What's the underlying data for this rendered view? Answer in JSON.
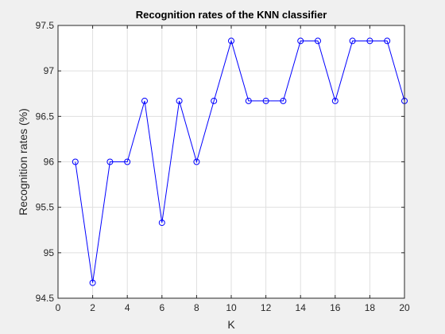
{
  "chart_data": {
    "type": "line",
    "title": "Recognition rates of the KNN classifier",
    "xlabel": "K",
    "ylabel": "Recognition rates (%)",
    "xlim": [
      0,
      20
    ],
    "ylim": [
      94.5,
      97.5
    ],
    "xticks": [
      0,
      2,
      4,
      6,
      8,
      10,
      12,
      14,
      16,
      18,
      20
    ],
    "yticks": [
      94.5,
      95,
      95.5,
      96,
      96.5,
      97,
      97.5
    ],
    "grid": true,
    "series": [
      {
        "color": "#0000ff",
        "marker": "circle",
        "x": [
          1,
          2,
          3,
          4,
          5,
          6,
          7,
          8,
          9,
          10,
          11,
          12,
          13,
          14,
          15,
          16,
          17,
          18,
          19,
          20
        ],
        "y": [
          96.0,
          94.67,
          96.0,
          96.0,
          96.67,
          95.33,
          96.67,
          96.0,
          96.67,
          97.33,
          96.67,
          96.67,
          96.67,
          97.33,
          97.33,
          96.67,
          97.33,
          97.33,
          97.33,
          96.67
        ]
      }
    ]
  }
}
